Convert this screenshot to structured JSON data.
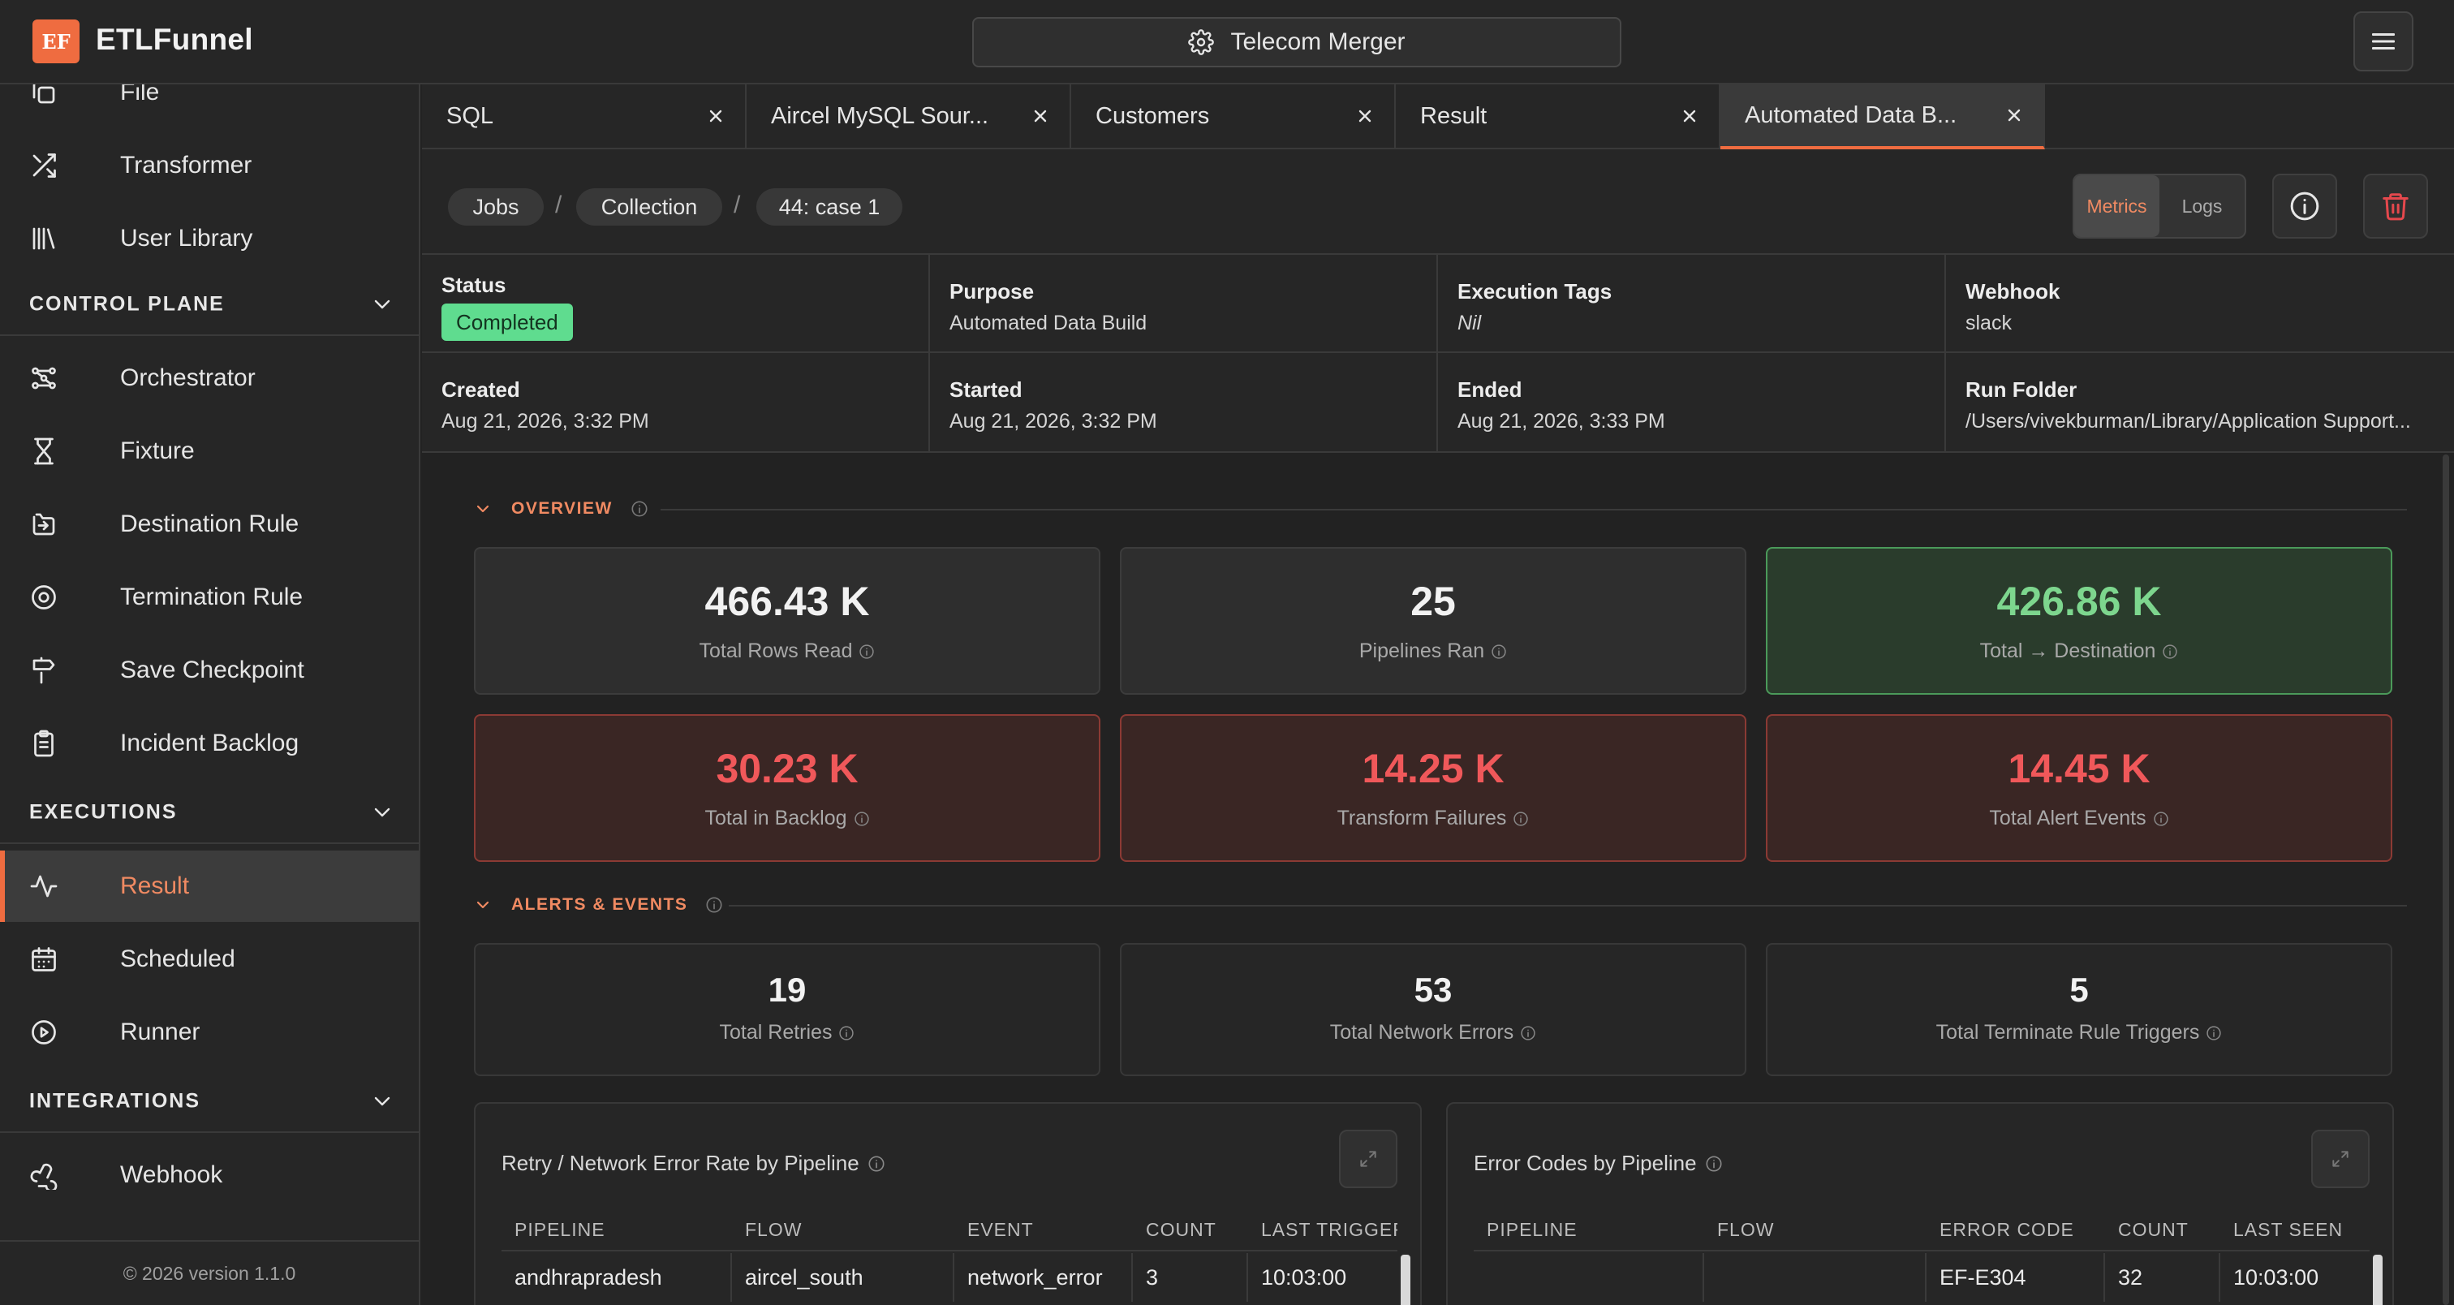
{
  "app": {
    "logo_text": "EF",
    "name": "ETLFunnel",
    "project_name": "Telecom Merger"
  },
  "sidebar": {
    "top_items": [
      {
        "label": "File",
        "icon": "file-icon"
      },
      {
        "label": "Transformer",
        "icon": "shuffle-icon"
      },
      {
        "label": "User Library",
        "icon": "library-icon"
      }
    ],
    "sections": {
      "control_plane": {
        "title": "CONTROL PLANE",
        "items": [
          {
            "label": "Orchestrator",
            "icon": "orchestrator-icon"
          },
          {
            "label": "Fixture",
            "icon": "hourglass-icon"
          },
          {
            "label": "Destination Rule",
            "icon": "destination-icon"
          },
          {
            "label": "Termination Rule",
            "icon": "target-icon"
          },
          {
            "label": "Save Checkpoint",
            "icon": "signpost-icon"
          },
          {
            "label": "Incident Backlog",
            "icon": "clipboard-icon"
          }
        ]
      },
      "executions": {
        "title": "EXECUTIONS",
        "items": [
          {
            "label": "Result",
            "icon": "activity-icon",
            "active": true
          },
          {
            "label": "Scheduled",
            "icon": "calendar-icon"
          },
          {
            "label": "Runner",
            "icon": "play-circle-icon"
          }
        ]
      },
      "integrations": {
        "title": "INTEGRATIONS",
        "items": [
          {
            "label": "Webhook",
            "icon": "webhook-icon"
          }
        ]
      }
    },
    "footer": "© 2026 version 1.1.0"
  },
  "tabs": [
    {
      "label": "SQL"
    },
    {
      "label": "Aircel MySQL Sour..."
    },
    {
      "label": "Customers"
    },
    {
      "label": "Result"
    },
    {
      "label": "Automated Data B...",
      "active": true
    }
  ],
  "breadcrumb": [
    "Jobs",
    "Collection",
    "44: case 1"
  ],
  "view_toggle": {
    "metrics": "Metrics",
    "logs": "Logs",
    "selected": "Metrics"
  },
  "run_info": {
    "status_label": "Status",
    "status": "Completed",
    "purpose_label": "Purpose",
    "purpose": "Automated Data Build",
    "tags_label": "Execution Tags",
    "tags": "Nil",
    "webhook_label": "Webhook",
    "webhook": "slack",
    "created_label": "Created",
    "created": "Aug 21, 2026, 3:32 PM",
    "started_label": "Started",
    "started": "Aug 21, 2026, 3:32 PM",
    "ended_label": "Ended",
    "ended": "Aug 21, 2026, 3:33 PM",
    "folder_label": "Run Folder",
    "folder": "/Users/vivekburman/Library/Application Support..."
  },
  "overview": {
    "title": "OVERVIEW",
    "cards": [
      {
        "value": "466.43 K",
        "label": "Total Rows Read",
        "tone": "neutral"
      },
      {
        "value": "25",
        "label": "Pipelines Ran",
        "tone": "neutral"
      },
      {
        "value": "426.86 K",
        "label": "Total → Destination",
        "tone": "success"
      },
      {
        "value": "30.23 K",
        "label": "Total in Backlog",
        "tone": "danger"
      },
      {
        "value": "14.25 K",
        "label": "Transform Failures",
        "tone": "danger"
      },
      {
        "value": "14.45 K",
        "label": "Total Alert Events",
        "tone": "danger"
      }
    ]
  },
  "alerts": {
    "title": "ALERTS & EVENTS",
    "cards": [
      {
        "value": "19",
        "label": "Total Retries"
      },
      {
        "value": "53",
        "label": "Total Network Errors"
      },
      {
        "value": "5",
        "label": "Total Terminate Rule Triggers"
      }
    ]
  },
  "retry_table": {
    "title": "Retry / Network Error Rate by Pipeline",
    "columns": [
      "PIPELINE",
      "FLOW",
      "EVENT",
      "COUNT",
      "LAST TRIGGER"
    ],
    "rows": [
      [
        "andhrapradesh",
        "aircel_south",
        "network_error",
        "3",
        "10:03:00"
      ]
    ]
  },
  "error_table": {
    "title": "Error Codes by Pipeline",
    "columns": [
      "PIPELINE",
      "FLOW",
      "ERROR CODE",
      "COUNT",
      "LAST SEEN"
    ],
    "rows": [
      [
        "",
        "",
        "EF-E304",
        "32",
        "10:03:00"
      ]
    ]
  },
  "colors": {
    "accent": "#ef6c40",
    "success_text": "#7dd68e",
    "danger_text": "#f0585a",
    "status_badge": "#5fdc8f"
  }
}
